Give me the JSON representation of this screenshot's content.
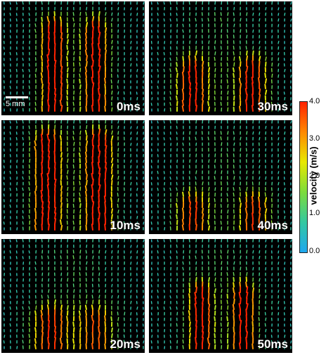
{
  "figure": {
    "scale_bar_label": "5 mm",
    "colorbar": {
      "title": "velocity (m/s)",
      "ticks": [
        "4.0",
        "3.0",
        "2.0",
        "1.0",
        "0.0"
      ],
      "colors": [
        "#ff2200",
        "#ff8800",
        "#e8e800",
        "#7cdc3c",
        "#34c8a0",
        "#20a8f0"
      ]
    },
    "panels": [
      {
        "label": "0ms",
        "jets": [
          {
            "x": 0.36,
            "strength": 1.0
          },
          {
            "x": 0.66,
            "strength": 0.95
          }
        ],
        "jet_top": 0.12,
        "base": 0.88,
        "spread": 0.06
      },
      {
        "label": "30ms",
        "jets": [
          {
            "x": 0.3,
            "strength": 0.85
          },
          {
            "x": 0.72,
            "strength": 0.85
          }
        ],
        "jet_top": 0.45,
        "base": 0.92,
        "spread": 0.08
      },
      {
        "label": "10ms",
        "jets": [
          {
            "x": 0.32,
            "strength": 1.0
          },
          {
            "x": 0.68,
            "strength": 1.0
          }
        ],
        "jet_top": 0.05,
        "base": 0.92,
        "spread": 0.07
      },
      {
        "label": "40ms",
        "jets": [
          {
            "x": 0.3,
            "strength": 0.75
          },
          {
            "x": 0.74,
            "strength": 0.75
          }
        ],
        "jet_top": 0.6,
        "base": 0.92,
        "spread": 0.08
      },
      {
        "label": "20ms",
        "jets": [
          {
            "x": 0.34,
            "strength": 0.75
          },
          {
            "x": 0.66,
            "strength": 0.65
          }
        ],
        "jet_top": 0.55,
        "base": 0.96,
        "spread": 0.09
      },
      {
        "label": "50ms",
        "jets": [
          {
            "x": 0.36,
            "strength": 0.9
          },
          {
            "x": 0.66,
            "strength": 0.95
          }
        ],
        "jet_top": 0.35,
        "base": 0.95,
        "spread": 0.06
      }
    ]
  }
}
